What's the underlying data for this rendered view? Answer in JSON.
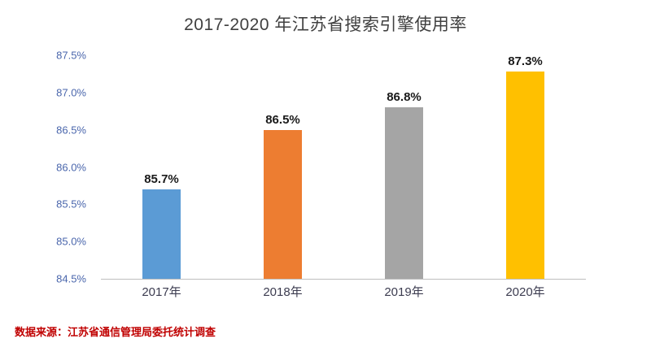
{
  "chart_data": {
    "type": "bar",
    "title": "2017-2020 年江苏省搜索引擎使用率",
    "categories": [
      "2017年",
      "2018年",
      "2019年",
      "2020年"
    ],
    "values": [
      85.7,
      86.5,
      86.8,
      87.3
    ],
    "value_labels": [
      "85.7%",
      "86.5%",
      "86.8%",
      "87.3%"
    ],
    "ylim": [
      84.5,
      87.5
    ],
    "yticks": [
      84.5,
      85.0,
      85.5,
      86.0,
      86.5,
      87.0,
      87.5
    ],
    "ytick_labels": [
      "84.5%",
      "85.0%",
      "85.5%",
      "86.0%",
      "86.5%",
      "87.0%",
      "87.5%"
    ],
    "bar_colors": [
      "#5B9BD5",
      "#ED7D31",
      "#A5A5A5",
      "#FFC000"
    ],
    "xlabel": "",
    "ylabel": "",
    "grid": false,
    "legend": false
  },
  "source": "数据来源：江苏省通信管理局委托统计调查",
  "colors": {
    "title_text": "#404040",
    "y_axis_labels": "#4A66AC",
    "x_axis_labels": "#3C3C50",
    "value_labels": "#1A1A1A",
    "axis_line": "#BFBFBF",
    "source_text": "#C00000",
    "background": "#FFFFFF"
  }
}
